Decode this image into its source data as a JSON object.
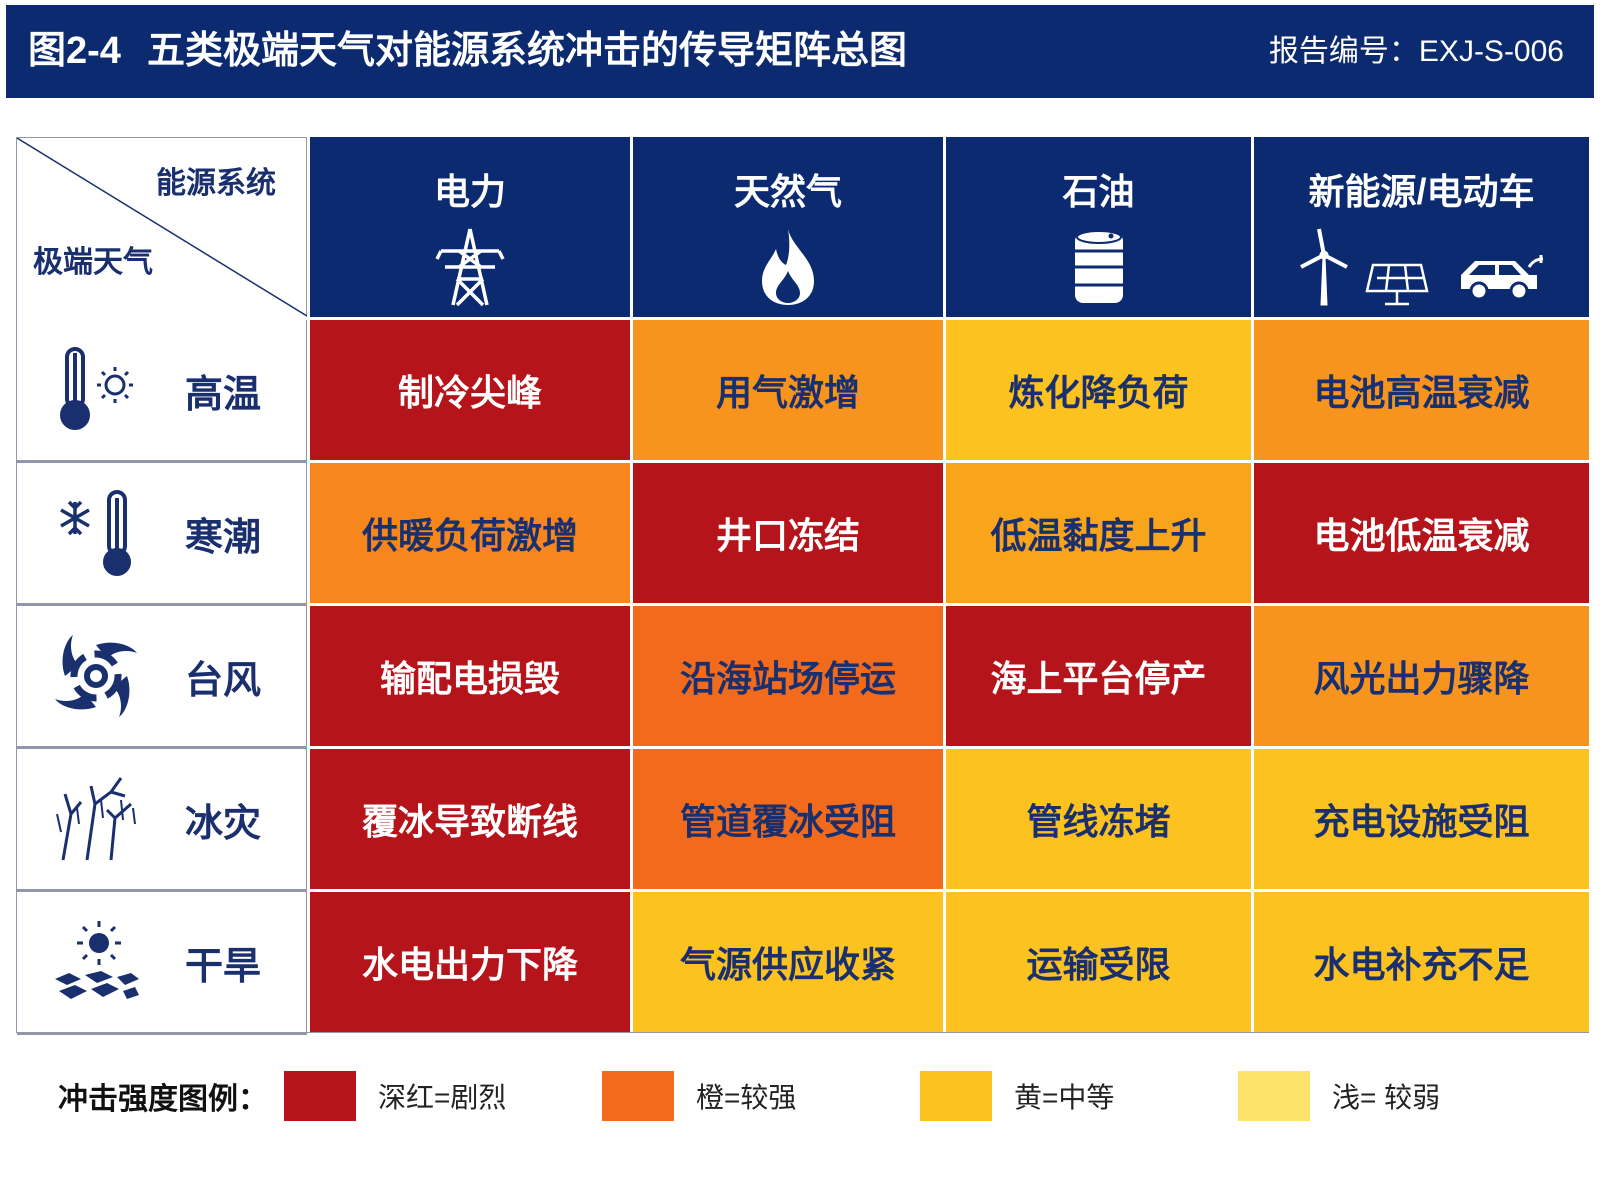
{
  "header": {
    "figure_number": "图2-4",
    "title": "五类极端天气对能源系统冲击的传导矩阵总图",
    "report_number": "报告编号：EXJ-S-006"
  },
  "table": {
    "corner": {
      "column_axis": "能源系统",
      "row_axis": "极端天气"
    },
    "columns": [
      "电力",
      "天然气",
      "石油",
      "新能源/电动车"
    ],
    "rows": [
      {
        "label": "高温",
        "cells": [
          {
            "text": "制冷尖峰",
            "color": "#b5141b"
          },
          {
            "text": "用气激增",
            "color": "#f7941d"
          },
          {
            "text": "炼化降负荷",
            "color": "#fcc21f"
          },
          {
            "text": "电池高温衰减",
            "color": "#f7941d"
          }
        ]
      },
      {
        "label": "寒潮",
        "cells": [
          {
            "text": "供暖负荷激增",
            "color": "#f7861d"
          },
          {
            "text": "井口冻结",
            "color": "#b5141b"
          },
          {
            "text": "低温黏度上升",
            "color": "#f9a51b"
          },
          {
            "text": "电池低温衰减",
            "color": "#b5141b"
          }
        ]
      },
      {
        "label": "台风",
        "cells": [
          {
            "text": "输配电损毁",
            "color": "#b5141b"
          },
          {
            "text": "沿海站场停运",
            "color": "#f26b1d"
          },
          {
            "text": "海上平台停产",
            "color": "#b5141b"
          },
          {
            "text": "风光出力骤降",
            "color": "#f7941d"
          }
        ]
      },
      {
        "label": "冰灾",
        "cells": [
          {
            "text": "覆冰导致断线",
            "color": "#b5141b"
          },
          {
            "text": "管道覆冰受阻",
            "color": "#f26b1d"
          },
          {
            "text": "管线冻堵",
            "color": "#fcc21f"
          },
          {
            "text": "充电设施受阻",
            "color": "#fcc21f"
          }
        ]
      },
      {
        "label": "干旱",
        "cells": [
          {
            "text": "水电出力下降",
            "color": "#b5141b"
          },
          {
            "text": "气源供应收紧",
            "color": "#fcc21f"
          },
          {
            "text": "运输受限",
            "color": "#fcc21f"
          },
          {
            "text": "水电补充不足",
            "color": "#fcc21f"
          }
        ]
      }
    ]
  },
  "legend": {
    "title": "冲击强度图例：",
    "items": [
      {
        "label": "深红=剧烈",
        "color": "#b5141b"
      },
      {
        "label": "橙=较强",
        "color": "#f26b1d"
      },
      {
        "label": "黄=中等",
        "color": "#fcc21f"
      },
      {
        "label": "浅= 较弱",
        "color": "#fde36a"
      }
    ]
  }
}
